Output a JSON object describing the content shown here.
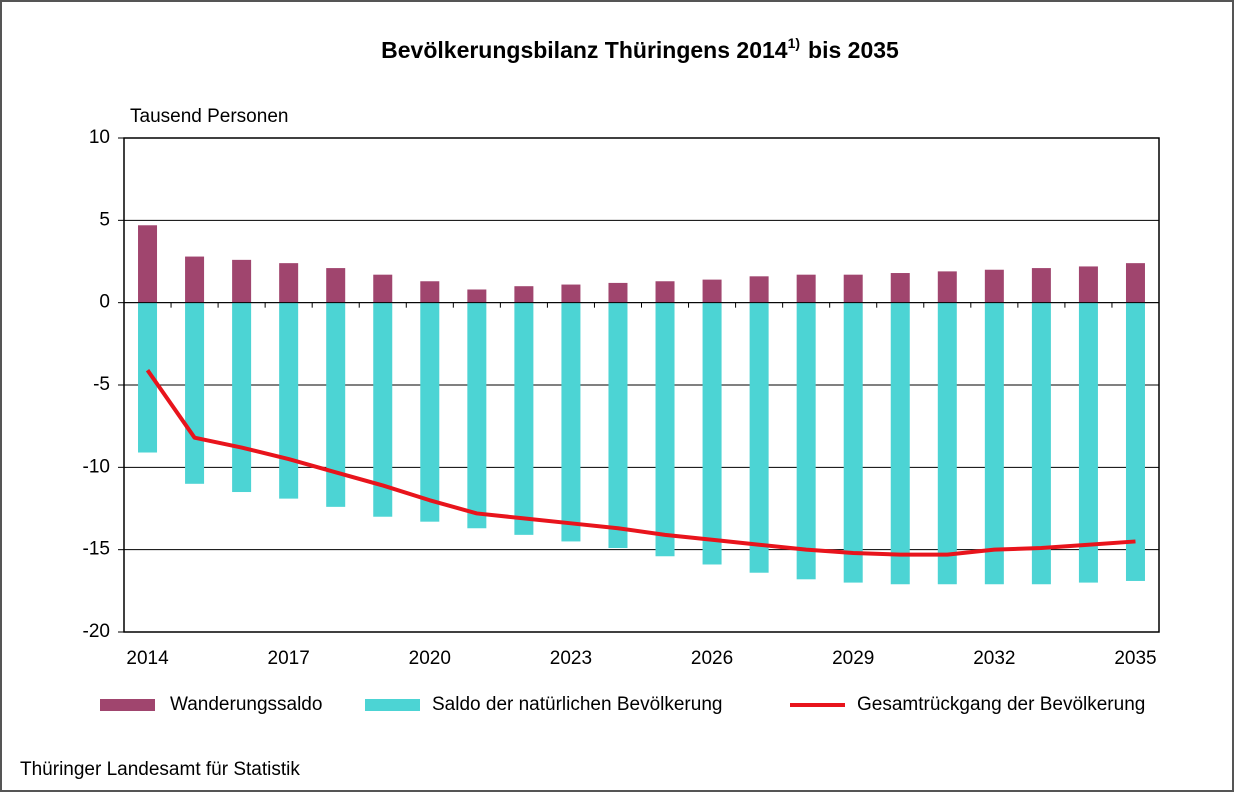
{
  "chart_data": {
    "type": "bar_line",
    "title": "Bevölkerungsbilanz Thüringens 2014",
    "title_note": "1)",
    "title_end": "bis 2035",
    "y_label": "Tausend Personen",
    "source": "Thüringer Landesamt für Statistik",
    "categories": [
      "2014",
      null,
      null,
      "2017",
      null,
      null,
      "2020",
      null,
      null,
      "2023",
      null,
      null,
      "2026",
      null,
      null,
      "2029",
      null,
      null,
      "2032",
      null,
      null,
      "2035"
    ],
    "series": [
      {
        "name": "Wanderungssaldo",
        "color": "#a0456e",
        "kind": "bar",
        "values": [
          4.7,
          2.8,
          2.6,
          2.4,
          2.1,
          1.7,
          1.3,
          0.8,
          1.0,
          1.1,
          1.2,
          1.3,
          1.4,
          1.6,
          1.7,
          1.7,
          1.8,
          1.9,
          2.0,
          2.1,
          2.2,
          2.4
        ]
      },
      {
        "name": "Saldo der natürlichen Bevölkerung",
        "color": "#4cd4d4",
        "kind": "bar",
        "values": [
          -9.1,
          -11.0,
          -11.5,
          -11.9,
          -12.4,
          -13.0,
          -13.3,
          -13.7,
          -14.1,
          -14.5,
          -14.9,
          -15.4,
          -15.9,
          -16.4,
          -16.8,
          -17.0,
          -17.1,
          -17.1,
          -17.1,
          -17.1,
          -17.0,
          -16.9
        ]
      },
      {
        "name": "Gesamtrückgang der Bevölkerung",
        "color": "#e8141c",
        "kind": "line",
        "values": [
          -4.1,
          -8.2,
          -8.8,
          -9.5,
          -10.3,
          -11.1,
          -12.0,
          -12.8,
          -13.1,
          -13.4,
          -13.7,
          -14.1,
          -14.4,
          -14.7,
          -15.0,
          -15.2,
          -15.3,
          -15.3,
          -15.0,
          -14.9,
          -14.7,
          -14.5
        ]
      }
    ],
    "ylim": [
      -20,
      10
    ],
    "yticks": [
      -20,
      -15,
      -10,
      -5,
      0,
      5,
      10
    ],
    "grid": true
  }
}
